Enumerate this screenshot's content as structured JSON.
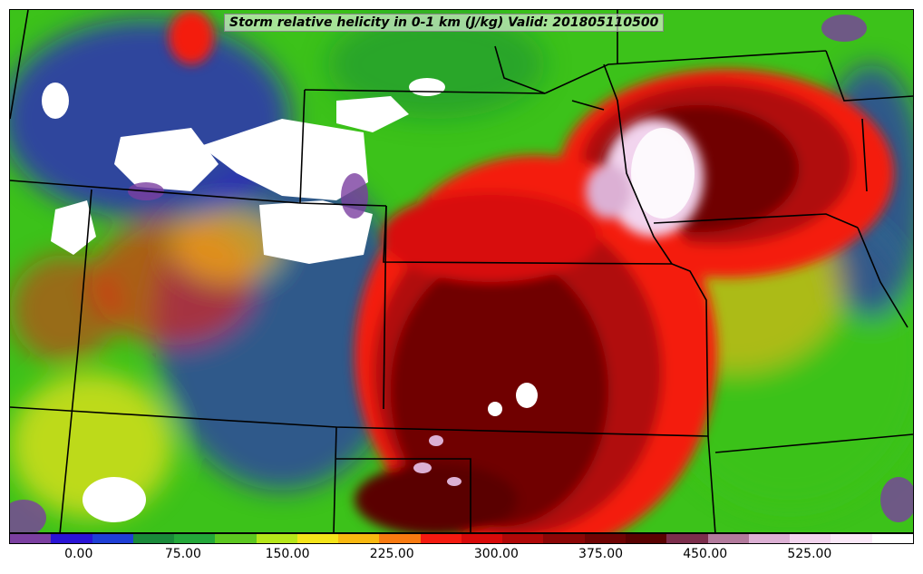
{
  "title": "Storm relative helicity in 0-1 km (J/kg) Valid: 201805110500",
  "colorbar": {
    "colors": [
      "#7b3fa0",
      "#2a14d6",
      "#1f3fd6",
      "#1a8a3a",
      "#24a83a",
      "#5cc820",
      "#b5e61a",
      "#f4e41a",
      "#f8b810",
      "#f87a10",
      "#f41a10",
      "#d80a0a",
      "#b00808",
      "#8c0606",
      "#700404",
      "#5a0202",
      "#7c2e4c",
      "#b27a9c",
      "#dcb0d4",
      "#f2d4ee",
      "#fae8f8",
      "#ffffff"
    ],
    "tick_labels": [
      "0.00",
      "75.00",
      "150.00",
      "225.00",
      "300.00",
      "375.00",
      "450.00",
      "525.00"
    ],
    "tick_values": [
      0,
      75,
      150,
      225,
      300,
      375,
      450,
      525
    ],
    "range": [
      -50,
      600
    ]
  }
}
